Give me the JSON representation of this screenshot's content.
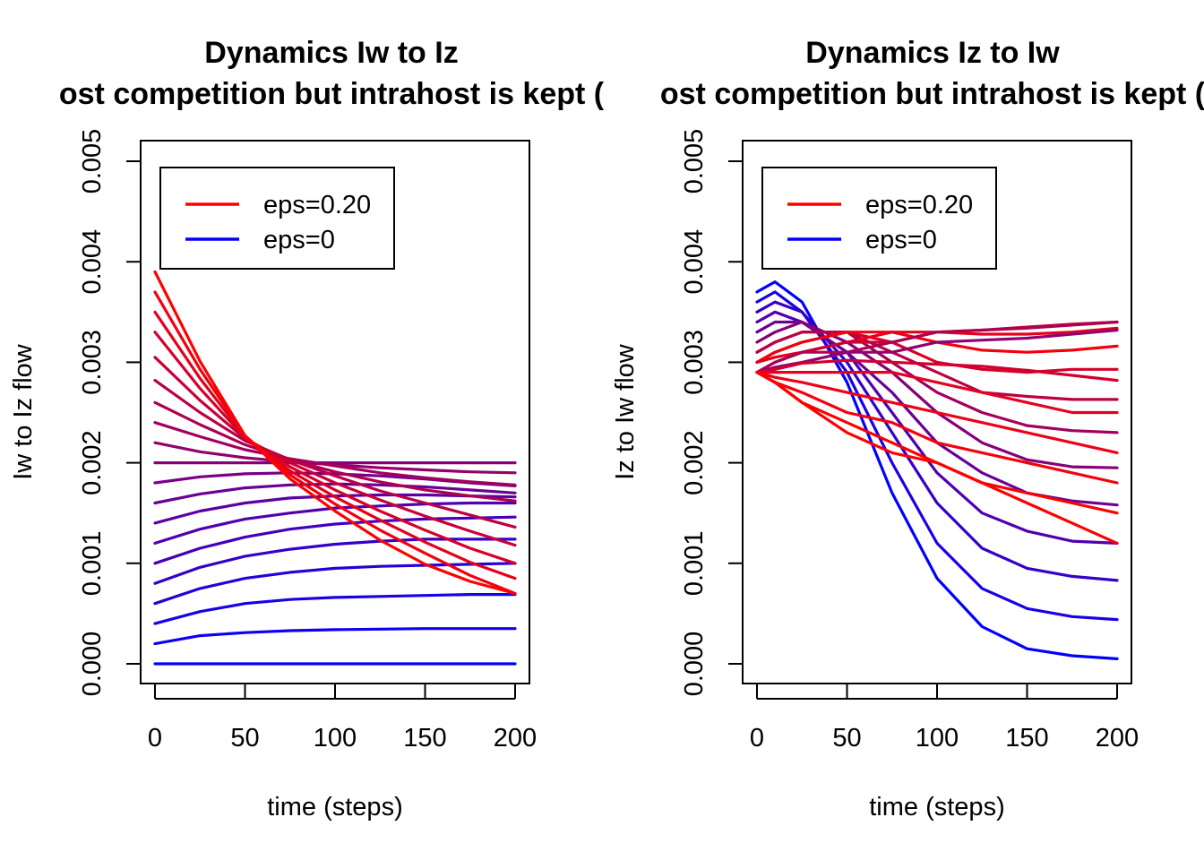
{
  "colors": {
    "eps_high": "#ff0000",
    "eps_zero": "#0000ff"
  },
  "chart_data": [
    {
      "type": "line",
      "title": "Dynamics Iw to Iz",
      "subtitle": "ost competition but intrahost is kept (",
      "xlabel": "time (steps)",
      "ylabel": "Iw to Iz flow",
      "xlim": [
        0,
        200
      ],
      "ylim": [
        0.0,
        0.005
      ],
      "x_ticks": [
        "0",
        "50",
        "100",
        "150",
        "200"
      ],
      "y_ticks": [
        "0.000",
        "0.001",
        "0.002",
        "0.003",
        "0.004",
        "0.005"
      ],
      "legend_position": "top-left",
      "legend": [
        {
          "label": "eps=0.20",
          "color": "#ff0000"
        },
        {
          "label": "eps=0",
          "color": "#0000ff"
        }
      ],
      "x": [
        0,
        25,
        50,
        75,
        100,
        125,
        150,
        175,
        200
      ],
      "series": [
        {
          "color": "#0000ff",
          "values": [
            0.0,
            0.0,
            0.0,
            0.0,
            0.0,
            0.0,
            0.0,
            0.0,
            0.0
          ]
        },
        {
          "color": "#0d00f2",
          "values": [
            0.0002,
            0.00028,
            0.00031,
            0.00033,
            0.00034,
            0.000345,
            0.00035,
            0.00035,
            0.00035
          ]
        },
        {
          "color": "#1a00e5",
          "values": [
            0.0004,
            0.00052,
            0.0006,
            0.00064,
            0.00066,
            0.00067,
            0.00068,
            0.00069,
            0.00069
          ]
        },
        {
          "color": "#2800d7",
          "values": [
            0.0006,
            0.00075,
            0.00085,
            0.00091,
            0.00095,
            0.00097,
            0.00098,
            0.00099,
            0.001
          ]
        },
        {
          "color": "#3500ca",
          "values": [
            0.0008,
            0.00096,
            0.00107,
            0.00114,
            0.00119,
            0.00122,
            0.00124,
            0.00124,
            0.00124
          ]
        },
        {
          "color": "#4300bc",
          "values": [
            0.001,
            0.00115,
            0.00126,
            0.00134,
            0.00139,
            0.00142,
            0.00144,
            0.00145,
            0.00146
          ]
        },
        {
          "color": "#5000af",
          "values": [
            0.0012,
            0.00134,
            0.00144,
            0.0015,
            0.00155,
            0.00157,
            0.00159,
            0.0016,
            0.0016
          ]
        },
        {
          "color": "#5d00a2",
          "values": [
            0.0014,
            0.00152,
            0.0016,
            0.00165,
            0.00167,
            0.00168,
            0.00168,
            0.00167,
            0.00166
          ]
        },
        {
          "color": "#6b0094",
          "values": [
            0.0016,
            0.00169,
            0.00175,
            0.00178,
            0.00179,
            0.00178,
            0.00176,
            0.00173,
            0.0017
          ]
        },
        {
          "color": "#780087",
          "values": [
            0.0018,
            0.00186,
            0.00189,
            0.0019,
            0.00189,
            0.00187,
            0.00184,
            0.0018,
            0.00177
          ]
        },
        {
          "color": "#860079",
          "values": [
            0.002,
            0.002,
            0.002,
            0.002,
            0.002,
            0.002,
            0.002,
            0.002,
            0.002
          ]
        },
        {
          "color": "#93006c",
          "values": [
            0.0022,
            0.00211,
            0.00205,
            0.00201,
            0.00198,
            0.00195,
            0.00193,
            0.00191,
            0.0019
          ]
        },
        {
          "color": "#a1005e",
          "values": [
            0.0024,
            0.00226,
            0.00213,
            0.00204,
            0.00197,
            0.0019,
            0.00185,
            0.00181,
            0.00178
          ]
        },
        {
          "color": "#ae0051",
          "values": [
            0.0026,
            0.00238,
            0.00218,
            0.00203,
            0.00191,
            0.00181,
            0.00173,
            0.00167,
            0.00162
          ]
        },
        {
          "color": "#bb0044",
          "values": [
            0.00282,
            0.0025,
            0.00222,
            0.00203,
            0.00187,
            0.00172,
            0.0016,
            0.00148,
            0.00136
          ]
        },
        {
          "color": "#c90036",
          "values": [
            0.00305,
            0.00262,
            0.00224,
            0.002,
            0.0018,
            0.00163,
            0.00147,
            0.00132,
            0.00118
          ]
        },
        {
          "color": "#d60029",
          "values": [
            0.0033,
            0.00274,
            0.00225,
            0.00196,
            0.00173,
            0.00152,
            0.00133,
            0.00115,
            0.001
          ]
        },
        {
          "color": "#e4001b",
          "values": [
            0.0035,
            0.00284,
            0.00226,
            0.00192,
            0.00166,
            0.00143,
            0.00121,
            0.00101,
            0.00085
          ]
        },
        {
          "color": "#f1000e",
          "values": [
            0.0037,
            0.00293,
            0.00227,
            0.00188,
            0.00159,
            0.00133,
            0.0011,
            0.00088,
            0.0007
          ]
        },
        {
          "color": "#ff0000",
          "values": [
            0.0039,
            0.00301,
            0.00227,
            0.00184,
            0.00152,
            0.00123,
            0.00099,
            0.00082,
            0.0007
          ]
        }
      ]
    },
    {
      "type": "line",
      "title": "Dynamics Iz to Iw",
      "subtitle": "ost competition but intrahost is kept (",
      "xlabel": "time (steps)",
      "ylabel": "Iz to Iw flow",
      "xlim": [
        0,
        200
      ],
      "ylim": [
        0.0,
        0.005
      ],
      "x_ticks": [
        "0",
        "50",
        "100",
        "150",
        "200"
      ],
      "y_ticks": [
        "0.000",
        "0.001",
        "0.002",
        "0.003",
        "0.004",
        "0.005"
      ],
      "legend_position": "top-left",
      "legend": [
        {
          "label": "eps=0.20",
          "color": "#ff0000"
        },
        {
          "label": "eps=0",
          "color": "#0000ff"
        }
      ],
      "x": [
        0,
        10,
        25,
        50,
        75,
        100,
        125,
        150,
        175,
        200
      ],
      "series": [
        {
          "color": "#0000ff",
          "values": [
            0.0037,
            0.0038,
            0.0036,
            0.0028,
            0.0017,
            0.00085,
            0.00037,
            0.00015,
            8e-05,
            5e-05
          ]
        },
        {
          "color": "#1a00e5",
          "values": [
            0.0036,
            0.0037,
            0.0035,
            0.0029,
            0.002,
            0.0012,
            0.00075,
            0.00055,
            0.00047,
            0.00044
          ]
        },
        {
          "color": "#3500ca",
          "values": [
            0.0035,
            0.0036,
            0.0035,
            0.003,
            0.0023,
            0.0016,
            0.00115,
            0.00095,
            0.00087,
            0.00083
          ]
        },
        {
          "color": "#5000af",
          "values": [
            0.0034,
            0.0035,
            0.0034,
            0.0031,
            0.0025,
            0.0019,
            0.0015,
            0.00132,
            0.00122,
            0.0012
          ]
        },
        {
          "color": "#6b0094",
          "values": [
            0.0033,
            0.0034,
            0.0034,
            0.0031,
            0.0027,
            0.0022,
            0.0019,
            0.0017,
            0.00162,
            0.00158
          ]
        },
        {
          "color": "#860079",
          "values": [
            0.0032,
            0.0033,
            0.0034,
            0.0032,
            0.0029,
            0.0025,
            0.0022,
            0.00203,
            0.00196,
            0.00195
          ]
        },
        {
          "color": "#a1005e",
          "values": [
            0.0031,
            0.0032,
            0.0033,
            0.0033,
            0.003,
            0.0027,
            0.0025,
            0.00237,
            0.00232,
            0.0023
          ]
        },
        {
          "color": "#bb0044",
          "values": [
            0.0031,
            0.0032,
            0.0033,
            0.0033,
            0.0031,
            0.0029,
            0.0027,
            0.00266,
            0.00263,
            0.00263
          ]
        },
        {
          "color": "#d60029",
          "values": [
            0.003,
            0.0031,
            0.0032,
            0.0033,
            0.0032,
            0.003,
            0.00293,
            0.0029,
            0.00293,
            0.00293
          ]
        },
        {
          "color": "#f1000e",
          "values": [
            0.003,
            0.0031,
            0.0032,
            0.0033,
            0.0033,
            0.0032,
            0.00312,
            0.0031,
            0.00312,
            0.00316
          ]
        },
        {
          "color": "#e4001b",
          "values": [
            0.003,
            0.00305,
            0.0031,
            0.0032,
            0.0033,
            0.0033,
            0.00328,
            0.00328,
            0.0033,
            0.00334
          ]
        },
        {
          "color": "#c90036",
          "values": [
            0.0029,
            0.003,
            0.0031,
            0.0032,
            0.0032,
            0.0033,
            0.00332,
            0.00335,
            0.00338,
            0.0034
          ]
        },
        {
          "color": "#ae0051",
          "values": [
            0.0029,
            0.003,
            0.0031,
            0.0031,
            0.0032,
            0.0033,
            0.00332,
            0.00334,
            0.00337,
            0.0034
          ]
        },
        {
          "color": "#930070",
          "values": [
            0.0029,
            0.00295,
            0.003,
            0.0031,
            0.0031,
            0.0032,
            0.00322,
            0.00324,
            0.00328,
            0.00332
          ]
        },
        {
          "color": "#d00030",
          "values": [
            0.0029,
            0.00293,
            0.00299,
            0.00302,
            0.003,
            0.00298,
            0.00296,
            0.00292,
            0.00287,
            0.00282
          ]
        },
        {
          "color": "#e60020",
          "values": [
            0.0029,
            0.0029,
            0.0029,
            0.0029,
            0.0029,
            0.0028,
            0.0027,
            0.0026,
            0.0025,
            0.0025
          ]
        },
        {
          "color": "#ef0018",
          "values": [
            0.0029,
            0.00285,
            0.0028,
            0.0027,
            0.0026,
            0.0025,
            0.0024,
            0.0023,
            0.0022,
            0.0021
          ]
        },
        {
          "color": "#f5000c",
          "values": [
            0.0029,
            0.0028,
            0.0027,
            0.0025,
            0.0024,
            0.0022,
            0.0021,
            0.002,
            0.0019,
            0.0018
          ]
        },
        {
          "color": "#fa0005",
          "values": [
            0.0029,
            0.0028,
            0.0026,
            0.0024,
            0.0022,
            0.002,
            0.0018,
            0.0017,
            0.0016,
            0.0015
          ]
        },
        {
          "color": "#ff0000",
          "values": [
            0.0029,
            0.0028,
            0.0026,
            0.0023,
            0.0021,
            0.002,
            0.0018,
            0.0016,
            0.0014,
            0.0012
          ]
        }
      ]
    }
  ]
}
